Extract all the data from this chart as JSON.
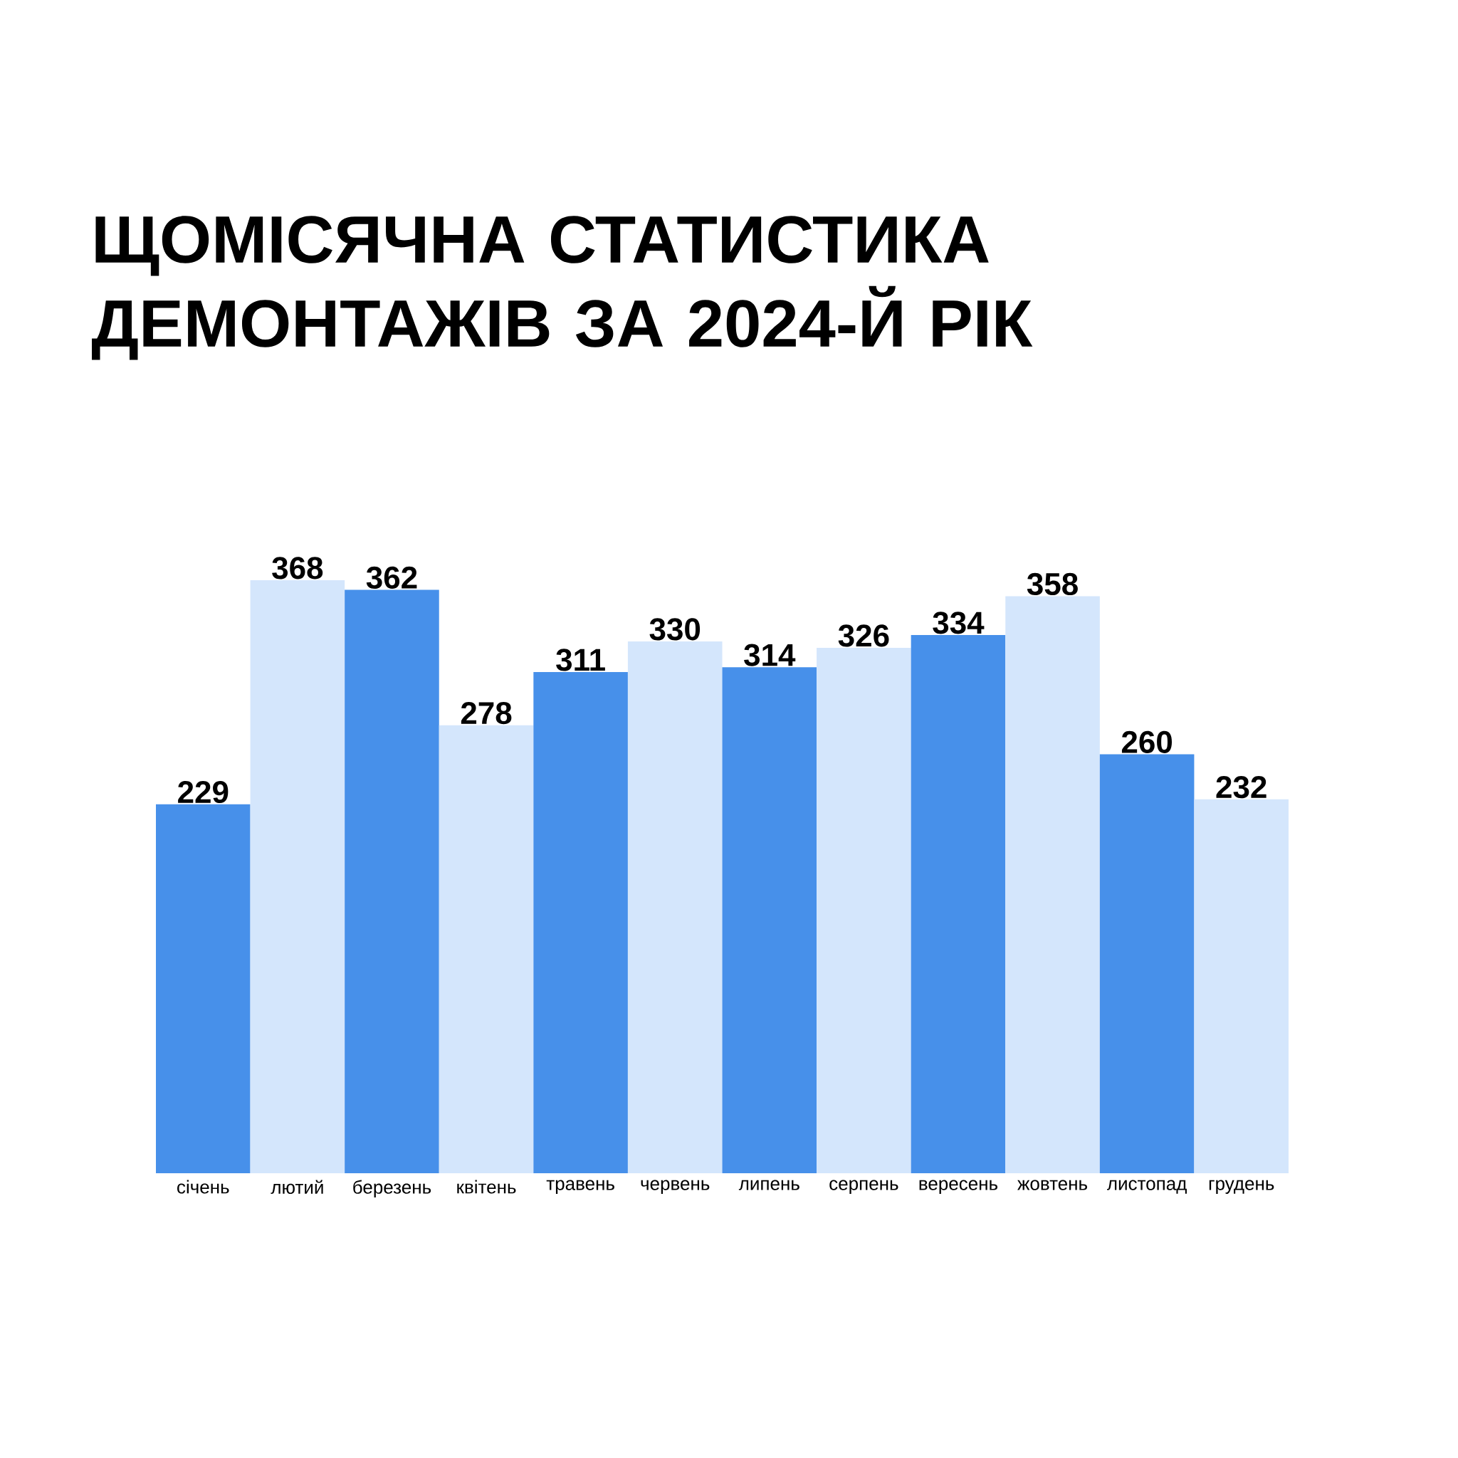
{
  "chart_data": {
    "type": "bar",
    "title": "ЩОМІСЯЧНА СТАТИСТИКА ДЕМОНТАЖІВ ЗА 2024-Й РІК",
    "categories": [
      "січень",
      "лютий",
      "березень",
      "квітень",
      "травень",
      "червень",
      "липень",
      "серпень",
      "вересень",
      "жовтень",
      "листопад",
      "грудень"
    ],
    "values": [
      229,
      368,
      362,
      278,
      311,
      330,
      314,
      326,
      334,
      358,
      260,
      232
    ],
    "colors": [
      "#4790ea",
      "#d4e6fc",
      "#4790ea",
      "#d4e6fc",
      "#4790ea",
      "#d4e6fc",
      "#4790ea",
      "#d4e6fc",
      "#4790ea",
      "#d4e6fc",
      "#4790ea",
      "#d4e6fc"
    ],
    "data_labels": true
  }
}
